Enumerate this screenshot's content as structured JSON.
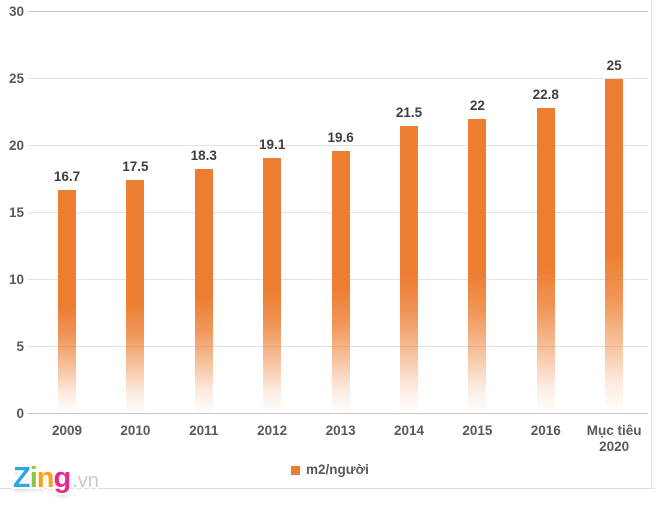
{
  "chart_data": {
    "type": "bar",
    "categories": [
      "2009",
      "2010",
      "2011",
      "2012",
      "2013",
      "2014",
      "2015",
      "2016",
      "Mục tiêu 2020"
    ],
    "values": [
      16.7,
      17.5,
      18.3,
      19.1,
      19.6,
      21.5,
      22,
      22.8,
      25
    ],
    "value_labels": [
      "16.7",
      "17.5",
      "18.3",
      "19.1",
      "19.6",
      "21.5",
      "22",
      "22.8",
      "25"
    ],
    "title": "",
    "xlabel": "",
    "ylabel": "",
    "ylim": [
      0,
      30
    ],
    "yticks": [
      0,
      5,
      10,
      15,
      20,
      25,
      30
    ],
    "grid": true,
    "legend": {
      "label": "m2/người",
      "position": "bottom-center"
    },
    "colors": {
      "bar": "#ED7D31",
      "gridline": "#E3E3E3",
      "axis_line": "#C6C6C6",
      "tick_label": "#595959",
      "value_label": "#3F3F3F"
    }
  },
  "watermark": {
    "letters": [
      {
        "char": "Z",
        "color": "#2BA9E0"
      },
      {
        "char": "i",
        "color": "#8CC63F"
      },
      {
        "char": "n",
        "color": "#F9A11B"
      },
      {
        "char": "g",
        "color": "#EC268F"
      }
    ],
    "suffix": ".vn",
    "suffix_color": "#C7C9CB"
  }
}
